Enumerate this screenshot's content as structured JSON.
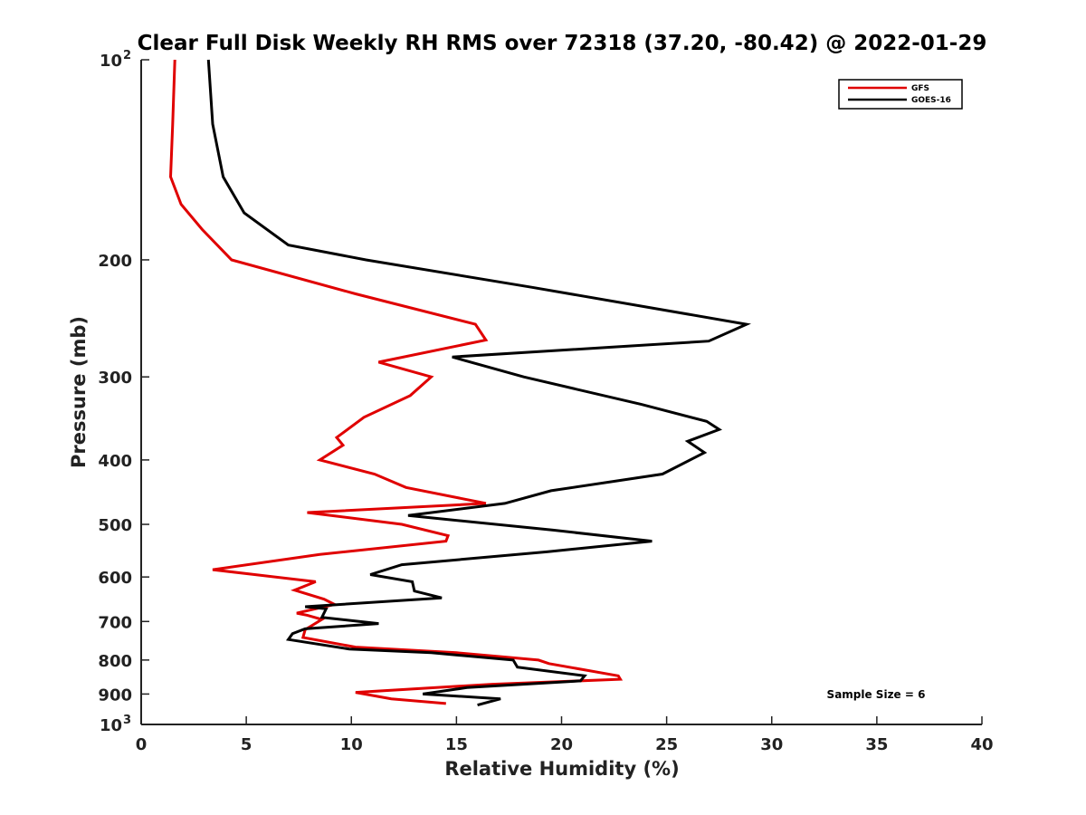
{
  "chart_data": {
    "type": "line",
    "title": "Clear Full Disk Weekly RH RMS over 72318 (37.20, -80.42) @ 2022-01-29",
    "xlabel": "Relative Humidity (%)",
    "ylabel": "Pressure (mb)",
    "xlim": [
      0,
      40
    ],
    "ylim": [
      100,
      1000
    ],
    "y_scale": "log",
    "y_reversed": true,
    "grid": false,
    "x_ticks": [
      "0",
      "5",
      "10",
      "15",
      "20",
      "25",
      "30",
      "35",
      "40"
    ],
    "y_ticks": [
      {
        "value": 100,
        "label": "10",
        "sup": "2"
      },
      {
        "value": 200,
        "label": "200",
        "sup": ""
      },
      {
        "value": 300,
        "label": "300",
        "sup": ""
      },
      {
        "value": 400,
        "label": "400",
        "sup": ""
      },
      {
        "value": 500,
        "label": "500",
        "sup": ""
      },
      {
        "value": 600,
        "label": "600",
        "sup": ""
      },
      {
        "value": 700,
        "label": "700",
        "sup": ""
      },
      {
        "value": 800,
        "label": "800",
        "sup": ""
      },
      {
        "value": 900,
        "label": "900",
        "sup": ""
      },
      {
        "value": 1000,
        "label": "10",
        "sup": "3"
      }
    ],
    "legend_position": "top-right",
    "annotation": "Sample Size = 6",
    "series": [
      {
        "name": "GFS",
        "color": "#e00000",
        "points": [
          [
            1.6,
            100
          ],
          [
            1.5,
            125
          ],
          [
            1.4,
            150
          ],
          [
            1.9,
            165
          ],
          [
            2.9,
            180
          ],
          [
            4.3,
            200
          ],
          [
            10.2,
            225
          ],
          [
            15.9,
            250
          ],
          [
            16.4,
            264
          ],
          [
            11.3,
            285
          ],
          [
            13.8,
            300
          ],
          [
            12.8,
            320
          ],
          [
            10.6,
            345
          ],
          [
            9.3,
            370
          ],
          [
            9.6,
            380
          ],
          [
            8.5,
            400
          ],
          [
            11.1,
            420
          ],
          [
            12.6,
            440
          ],
          [
            16.4,
            465
          ],
          [
            7.9,
            480
          ],
          [
            12.4,
            500
          ],
          [
            14.6,
            520
          ],
          [
            14.5,
            530
          ],
          [
            8.5,
            555
          ],
          [
            3.4,
            585
          ],
          [
            8.3,
            610
          ],
          [
            7.3,
            628
          ],
          [
            8.7,
            648
          ],
          [
            9.2,
            660
          ],
          [
            7.4,
            680
          ],
          [
            7.9,
            685
          ],
          [
            8.6,
            695
          ],
          [
            7.8,
            720
          ],
          [
            7.7,
            740
          ],
          [
            10.2,
            765
          ],
          [
            15.0,
            780
          ],
          [
            18.9,
            800
          ],
          [
            19.4,
            810
          ],
          [
            22.7,
            845
          ],
          [
            22.8,
            855
          ],
          [
            16.7,
            870
          ],
          [
            10.2,
            895
          ],
          [
            11.9,
            915
          ],
          [
            14.5,
            930
          ]
        ]
      },
      {
        "name": "GOES-16",
        "color": "#000000",
        "points": [
          [
            3.2,
            100
          ],
          [
            3.4,
            125
          ],
          [
            3.9,
            150
          ],
          [
            4.9,
            170
          ],
          [
            7.0,
            190
          ],
          [
            10.7,
            200
          ],
          [
            18.6,
            220
          ],
          [
            28.8,
            250
          ],
          [
            27.0,
            265
          ],
          [
            14.8,
            280
          ],
          [
            18.2,
            300
          ],
          [
            23.8,
            330
          ],
          [
            26.9,
            350
          ],
          [
            27.5,
            360
          ],
          [
            26.0,
            375
          ],
          [
            26.8,
            390
          ],
          [
            24.8,
            420
          ],
          [
            19.5,
            445
          ],
          [
            17.3,
            465
          ],
          [
            12.7,
            485
          ],
          [
            19.6,
            510
          ],
          [
            24.3,
            530
          ],
          [
            19.3,
            550
          ],
          [
            12.4,
            575
          ],
          [
            10.9,
            595
          ],
          [
            12.9,
            610
          ],
          [
            13.0,
            630
          ],
          [
            14.3,
            645
          ],
          [
            7.8,
            665
          ],
          [
            8.8,
            670
          ],
          [
            8.6,
            690
          ],
          [
            11.3,
            705
          ],
          [
            7.8,
            718
          ],
          [
            7.2,
            730
          ],
          [
            7.0,
            745
          ],
          [
            9.9,
            770
          ],
          [
            13.8,
            780
          ],
          [
            17.7,
            800
          ],
          [
            17.9,
            820
          ],
          [
            21.1,
            845
          ],
          [
            20.9,
            860
          ],
          [
            15.5,
            880
          ],
          [
            13.4,
            900
          ],
          [
            17.1,
            915
          ],
          [
            16.0,
            935
          ]
        ]
      }
    ]
  }
}
